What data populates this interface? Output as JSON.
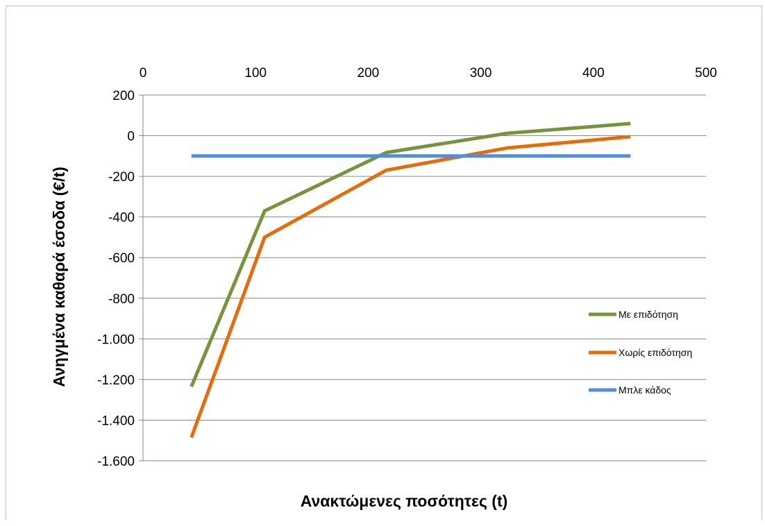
{
  "chart_data": {
    "type": "line",
    "title": "",
    "xlabel": "Ανακτώμενες ποσότητες (t)",
    "ylabel": "Ανηγμένα καθαρά έσοδα (€/t)",
    "xlim": [
      0,
      500
    ],
    "ylim": [
      -1600,
      200
    ],
    "x_ticks": [
      0,
      100,
      200,
      300,
      400,
      500
    ],
    "x_tick_labels": [
      "0",
      "100",
      "200",
      "300",
      "400",
      "500"
    ],
    "y_ticks": [
      200,
      0,
      -200,
      -400,
      -600,
      -800,
      -1000,
      -1200,
      -1400,
      -1600
    ],
    "y_tick_labels": [
      "200",
      "0",
      "-200",
      "-400",
      "-600",
      "-800",
      "-1.000",
      "-1.200",
      "-1.400",
      "-1.600"
    ],
    "x_axis_position": "top",
    "grid": "horizontal",
    "legend_position": "right",
    "series": [
      {
        "name": "Με επιδότηση",
        "color": "#77933c",
        "points": [
          [
            43,
            -1235
          ],
          [
            108,
            -370
          ],
          [
            216,
            -83
          ],
          [
            324,
            12
          ],
          [
            433,
            60
          ]
        ]
      },
      {
        "name": "Χωρίς επιδότηση",
        "color": "#e46c0a",
        "points": [
          [
            43,
            -1485
          ],
          [
            108,
            -500
          ],
          [
            216,
            -170
          ],
          [
            324,
            -60
          ],
          [
            433,
            -5
          ]
        ]
      },
      {
        "name": "Μπλε κάδος",
        "color": "#558ed5",
        "points": [
          [
            43,
            -100
          ],
          [
            433,
            -100
          ]
        ]
      }
    ]
  }
}
